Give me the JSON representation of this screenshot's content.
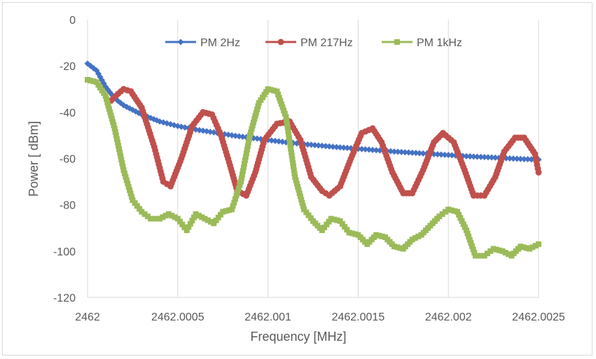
{
  "chart_data": {
    "type": "line",
    "xlabel": "Frequency [MHz]",
    "ylabel": "Power [ dBm]",
    "xlim": [
      2462,
      2462.0025
    ],
    "ylim": [
      -120,
      0
    ],
    "x_ticks": [
      2462,
      2462.0005,
      2462.001,
      2462.0015,
      2462.002,
      2462.0025
    ],
    "x_tick_labels": [
      "2462",
      "2462.0005",
      "2462.001",
      "2462.0015",
      "2462.002",
      "2462.0025"
    ],
    "y_ticks": [
      0,
      -20,
      -40,
      -60,
      -80,
      -100,
      -120
    ],
    "y_tick_labels": [
      "0",
      "-20",
      "-40",
      "-60",
      "-80",
      "-100",
      "-120"
    ],
    "grid": "vertical",
    "legend_position": "top",
    "series": [
      {
        "name": "PM 2Hz",
        "color": "#4472c4",
        "marker": "diamond",
        "x": [
          2462.0,
          2462.00005,
          2462.0001,
          2462.00015,
          2462.0002,
          2462.0003,
          2462.0004,
          2462.0005,
          2462.0006,
          2462.0007,
          2462.0008,
          2462.0009,
          2462.001,
          2462.0011,
          2462.0012,
          2462.0013,
          2462.0014,
          2462.0015,
          2462.0016,
          2462.0017,
          2462.0018,
          2462.0019,
          2462.002,
          2462.0021,
          2462.0022,
          2462.0023,
          2462.0024,
          2462.0025
        ],
        "y": [
          -19,
          -22,
          -29,
          -34,
          -37,
          -41,
          -44,
          -46,
          -47.5,
          -48.7,
          -50,
          -51,
          -52,
          -53,
          -53.8,
          -54.5,
          -55.2,
          -55.8,
          -56.4,
          -57,
          -57.5,
          -58,
          -58.5,
          -59,
          -59.4,
          -59.8,
          -60.2,
          -60.5
        ]
      },
      {
        "name": "PM 217Hz",
        "color": "#c0504d",
        "marker": "circle",
        "x": [
          2462.00013,
          2462.00017,
          2462.0002,
          2462.00024,
          2462.0003,
          2462.00037,
          2462.00042,
          2462.00046,
          2462.00052,
          2462.00058,
          2462.00064,
          2462.00069,
          2462.00074,
          2462.00079,
          2462.00083,
          2462.00088,
          2462.00093,
          2462.00098,
          2462.00105,
          2462.00112,
          2462.00118,
          2462.00124,
          2462.0013,
          2462.00134,
          2462.0014,
          2462.00146,
          2462.00152,
          2462.00158,
          2462.00163,
          2462.00169,
          2462.00175,
          2462.0018,
          2462.00186,
          2462.00192,
          2462.00197,
          2462.00203,
          2462.00209,
          2462.00214,
          2462.0022,
          2462.00226,
          2462.00231,
          2462.00237,
          2462.00242,
          2462.00248,
          2462.0025
        ],
        "y": [
          -35,
          -32,
          -30,
          -31,
          -38,
          -55,
          -70,
          -72,
          -60,
          -46,
          -40,
          -41,
          -50,
          -63,
          -74,
          -76,
          -66,
          -52,
          -45,
          -44,
          -52,
          -68,
          -74,
          -76,
          -72,
          -60,
          -49,
          -47,
          -53,
          -66,
          -75,
          -75,
          -65,
          -53,
          -49,
          -53,
          -65,
          -76,
          -76,
          -68,
          -57,
          -51,
          -51,
          -58,
          -66
        ]
      },
      {
        "name": "PM 1kHz",
        "color": "#9bbb59",
        "marker": "square",
        "x": [
          2462.0,
          2462.00005,
          2462.0001,
          2462.00015,
          2462.0002,
          2462.00025,
          2462.0003,
          2462.00035,
          2462.0004,
          2462.00045,
          2462.0005,
          2462.00055,
          2462.0006,
          2462.00065,
          2462.0007,
          2462.00075,
          2462.0008,
          2462.00085,
          2462.0009,
          2462.00095,
          2462.001,
          2462.00105,
          2462.0011,
          2462.00115,
          2462.0012,
          2462.00125,
          2462.0013,
          2462.00135,
          2462.0014,
          2462.00145,
          2462.0015,
          2462.00155,
          2462.0016,
          2462.00165,
          2462.0017,
          2462.00175,
          2462.0018,
          2462.00185,
          2462.0019,
          2462.00195,
          2462.002,
          2462.00205,
          2462.0021,
          2462.00215,
          2462.0022,
          2462.00225,
          2462.0023,
          2462.00235,
          2462.0024,
          2462.00245,
          2462.0025
        ],
        "y": [
          -26,
          -27,
          -33,
          -47,
          -65,
          -78,
          -83,
          -86,
          -86,
          -84,
          -86,
          -91,
          -84,
          -86,
          -88,
          -83,
          -82,
          -70,
          -50,
          -36,
          -30,
          -31,
          -42,
          -68,
          -82,
          -87,
          -91,
          -86,
          -87,
          -92,
          -93,
          -97,
          -93,
          -94,
          -98,
          -99,
          -95,
          -93,
          -89,
          -85,
          -82,
          -83,
          -91,
          -102,
          -102,
          -99,
          -100,
          -102,
          -98,
          -99,
          -97
        ]
      }
    ]
  }
}
